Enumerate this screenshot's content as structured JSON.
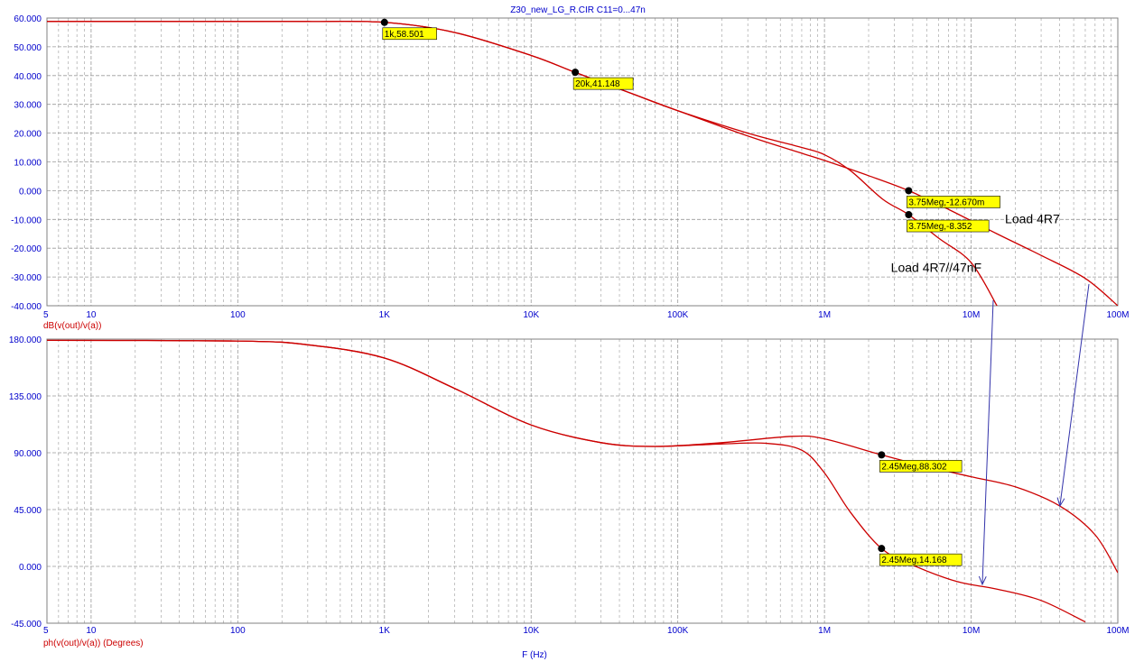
{
  "title": "Z30_new_LG_R.CIR C11=0...47n",
  "x_label": "F (Hz)",
  "colors": {
    "axis_tick": "#0000cc",
    "trace": "#cc0000",
    "marker_bg": "#ffff00",
    "arrow": "#3333aa",
    "grid": "#9a9a9a"
  },
  "chart_data": [
    {
      "type": "line",
      "ylabel": "dB(v(out)/v(a))",
      "xscale": "log",
      "xlim": [
        5,
        100000000
      ],
      "ylim": [
        -40,
        60
      ],
      "yticks": [
        60,
        50,
        40,
        30,
        20,
        10,
        0,
        -10,
        -20,
        -30,
        -40
      ],
      "ytick_labels": [
        "60.000",
        "50.000",
        "40.000",
        "30.000",
        "20.000",
        "10.000",
        "0.000",
        "-10.000",
        "-20.000",
        "-30.000",
        "-40.000"
      ],
      "xticks": [
        5,
        10,
        100,
        1000,
        10000,
        100000,
        1000000,
        10000000,
        100000000
      ],
      "xtick_labels": [
        "5",
        "10",
        "100",
        "1K",
        "10K",
        "100K",
        "1M",
        "10M",
        "100M"
      ],
      "grid": true,
      "series": [
        {
          "x": [
            5,
            100,
            300,
            1000,
            3000,
            10000,
            20000,
            50000,
            100000,
            300000,
            700000,
            1000000,
            2000000,
            3750000,
            7000000,
            15000000,
            30000000,
            60000000,
            100000000
          ],
          "y": [
            58.8,
            58.8,
            58.8,
            58.5,
            55.0,
            47.0,
            41.1,
            33.5,
            27.8,
            19.0,
            13.0,
            10.5,
            5.2,
            0.0,
            -6.5,
            -15.0,
            -22.5,
            -30.5,
            -40.0
          ]
        },
        {
          "x": [
            5,
            100,
            300,
            1000,
            3000,
            10000,
            20000,
            50000,
            100000,
            300000,
            700000,
            1000000,
            1500000,
            2500000,
            3750000,
            6000000,
            10000000,
            15000000
          ],
          "y": [
            58.8,
            58.8,
            58.8,
            58.5,
            55.0,
            47.0,
            41.1,
            33.5,
            27.8,
            20.0,
            15.0,
            12.5,
            7.0,
            -3.0,
            -8.35,
            -16.5,
            -25.0,
            -40.0
          ]
        }
      ],
      "markers": [
        {
          "x": 1000,
          "y": 58.501,
          "label": "1k,58.501"
        },
        {
          "x": 20000,
          "y": 41.148,
          "label": "20k,41.148"
        },
        {
          "x": 3750000,
          "y": -0.01267,
          "label": "3.75Meg,-12.670m"
        },
        {
          "x": 3750000,
          "y": -8.352,
          "label": "3.75Meg,-8.352"
        }
      ],
      "annotations": [
        {
          "text": "Load 4R7",
          "x": 30000000,
          "y": -10
        },
        {
          "text": "Load 4R7//47nF",
          "x": 5000000,
          "y": -27
        }
      ]
    },
    {
      "type": "line",
      "ylabel": "ph(v(out)/v(a)) (Degrees)",
      "xscale": "log",
      "xlim": [
        5,
        100000000
      ],
      "ylim": [
        -45,
        180
      ],
      "yticks": [
        180,
        135,
        90,
        45,
        0,
        -45
      ],
      "ytick_labels": [
        "180.000",
        "135.000",
        "90.000",
        "45.000",
        "0.000",
        "-45.000"
      ],
      "xticks": [
        5,
        10,
        100,
        1000,
        10000,
        100000,
        1000000,
        10000000,
        100000000
      ],
      "xtick_labels": [
        "5",
        "10",
        "100",
        "1K",
        "10K",
        "100K",
        "1M",
        "10M",
        "100M"
      ],
      "grid": true,
      "series": [
        {
          "x": [
            5,
            100,
            300,
            1000,
            3000,
            10000,
            30000,
            70000,
            200000,
            600000,
            1000000,
            2450000,
            5000000,
            10000000,
            20000000,
            40000000,
            70000000,
            100000000
          ],
          "y": [
            179,
            178.5,
            175.5,
            165,
            141,
            112,
            98,
            95,
            98,
            103,
            101,
            88.3,
            79,
            71,
            63,
            48,
            25,
            -5
          ]
        },
        {
          "x": [
            5,
            100,
            300,
            1000,
            3000,
            10000,
            30000,
            70000,
            200000,
            400000,
            700000,
            1000000,
            1500000,
            2450000,
            4000000,
            8000000,
            15000000,
            30000000,
            60000000
          ],
          "y": [
            179,
            178.5,
            175.5,
            165,
            141,
            112,
            98,
            95,
            97,
            97.5,
            92,
            74,
            43,
            14.17,
            1,
            -12,
            -18,
            -27,
            -44
          ]
        }
      ],
      "markers": [
        {
          "x": 2450000,
          "y": 88.302,
          "label": "2.45Meg,88.302"
        },
        {
          "x": 2450000,
          "y": 14.168,
          "label": "2.45Meg,14.168"
        }
      ]
    }
  ]
}
